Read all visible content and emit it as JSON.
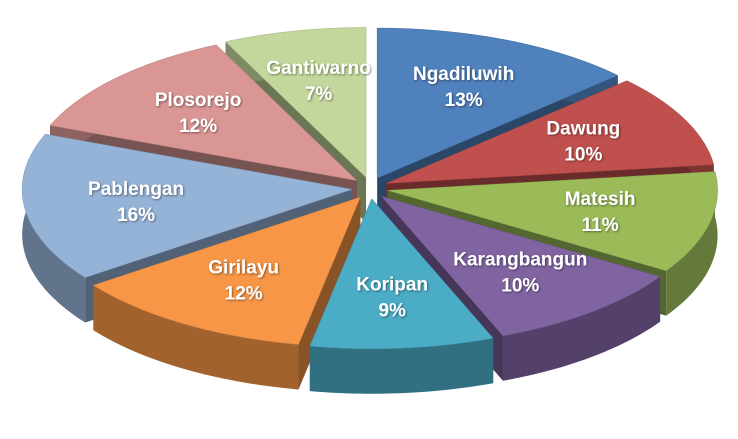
{
  "chart_data": {
    "type": "pie",
    "categories": [
      "Ngadiluwih",
      "Dawung",
      "Matesih",
      "Karangbangun",
      "Koripan",
      "Girilayu",
      "Pablengan",
      "Plosorejo",
      "Gantiwarno"
    ],
    "values": [
      13,
      10,
      11,
      10,
      9,
      12,
      16,
      12,
      7
    ],
    "value_labels": [
      "13%",
      "10%",
      "11%",
      "10%",
      "9%",
      "12%",
      "16%",
      "12%",
      "7%"
    ],
    "colors": [
      "#4f81bd",
      "#c0504d",
      "#9bbb59",
      "#8064a2",
      "#4bacc6",
      "#f79646",
      "#95b3d7",
      "#d99694",
      "#c3d69b"
    ],
    "exploded": true,
    "three_d": true
  }
}
